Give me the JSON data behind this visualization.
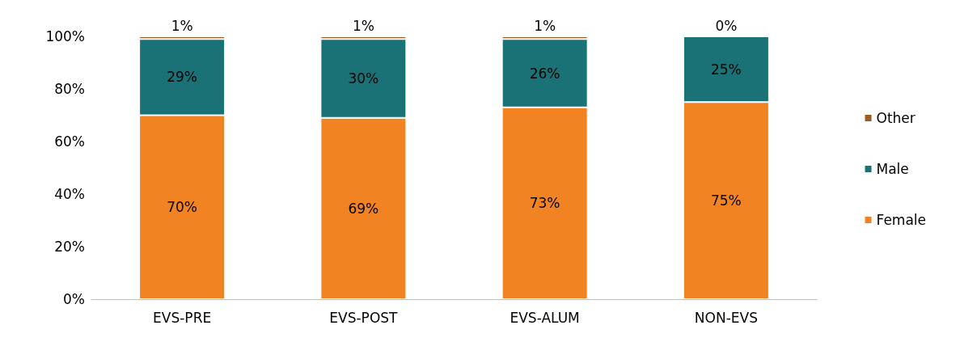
{
  "chart_data": {
    "type": "bar",
    "stacked": true,
    "categories": [
      "EVS-PRE",
      "EVS-POST",
      "EVS-ALUM",
      "NON-EVS"
    ],
    "series": [
      {
        "name": "Female",
        "color": "#f28323",
        "values": [
          70,
          69,
          73,
          75
        ],
        "value_labels": [
          "70%",
          "69%",
          "73%",
          "75%"
        ]
      },
      {
        "name": "Male",
        "color": "#1a7176",
        "values": [
          29,
          30,
          26,
          25
        ],
        "value_labels": [
          "29%",
          "30%",
          "26%",
          "25%"
        ]
      },
      {
        "name": "Other",
        "color": "#9b5c24",
        "values": [
          1,
          1,
          1,
          0
        ],
        "value_labels": [
          "1%",
          "1%",
          "1%",
          "0%"
        ]
      }
    ],
    "ylim": [
      0,
      100
    ],
    "yticks": [
      {
        "value": 0,
        "label": "0%"
      },
      {
        "value": 20,
        "label": "20%"
      },
      {
        "value": 40,
        "label": "40%"
      },
      {
        "value": 60,
        "label": "60%"
      },
      {
        "value": 80,
        "label": "80%"
      },
      {
        "value": 100,
        "label": "100%"
      }
    ],
    "grid": false,
    "legend": "right"
  }
}
